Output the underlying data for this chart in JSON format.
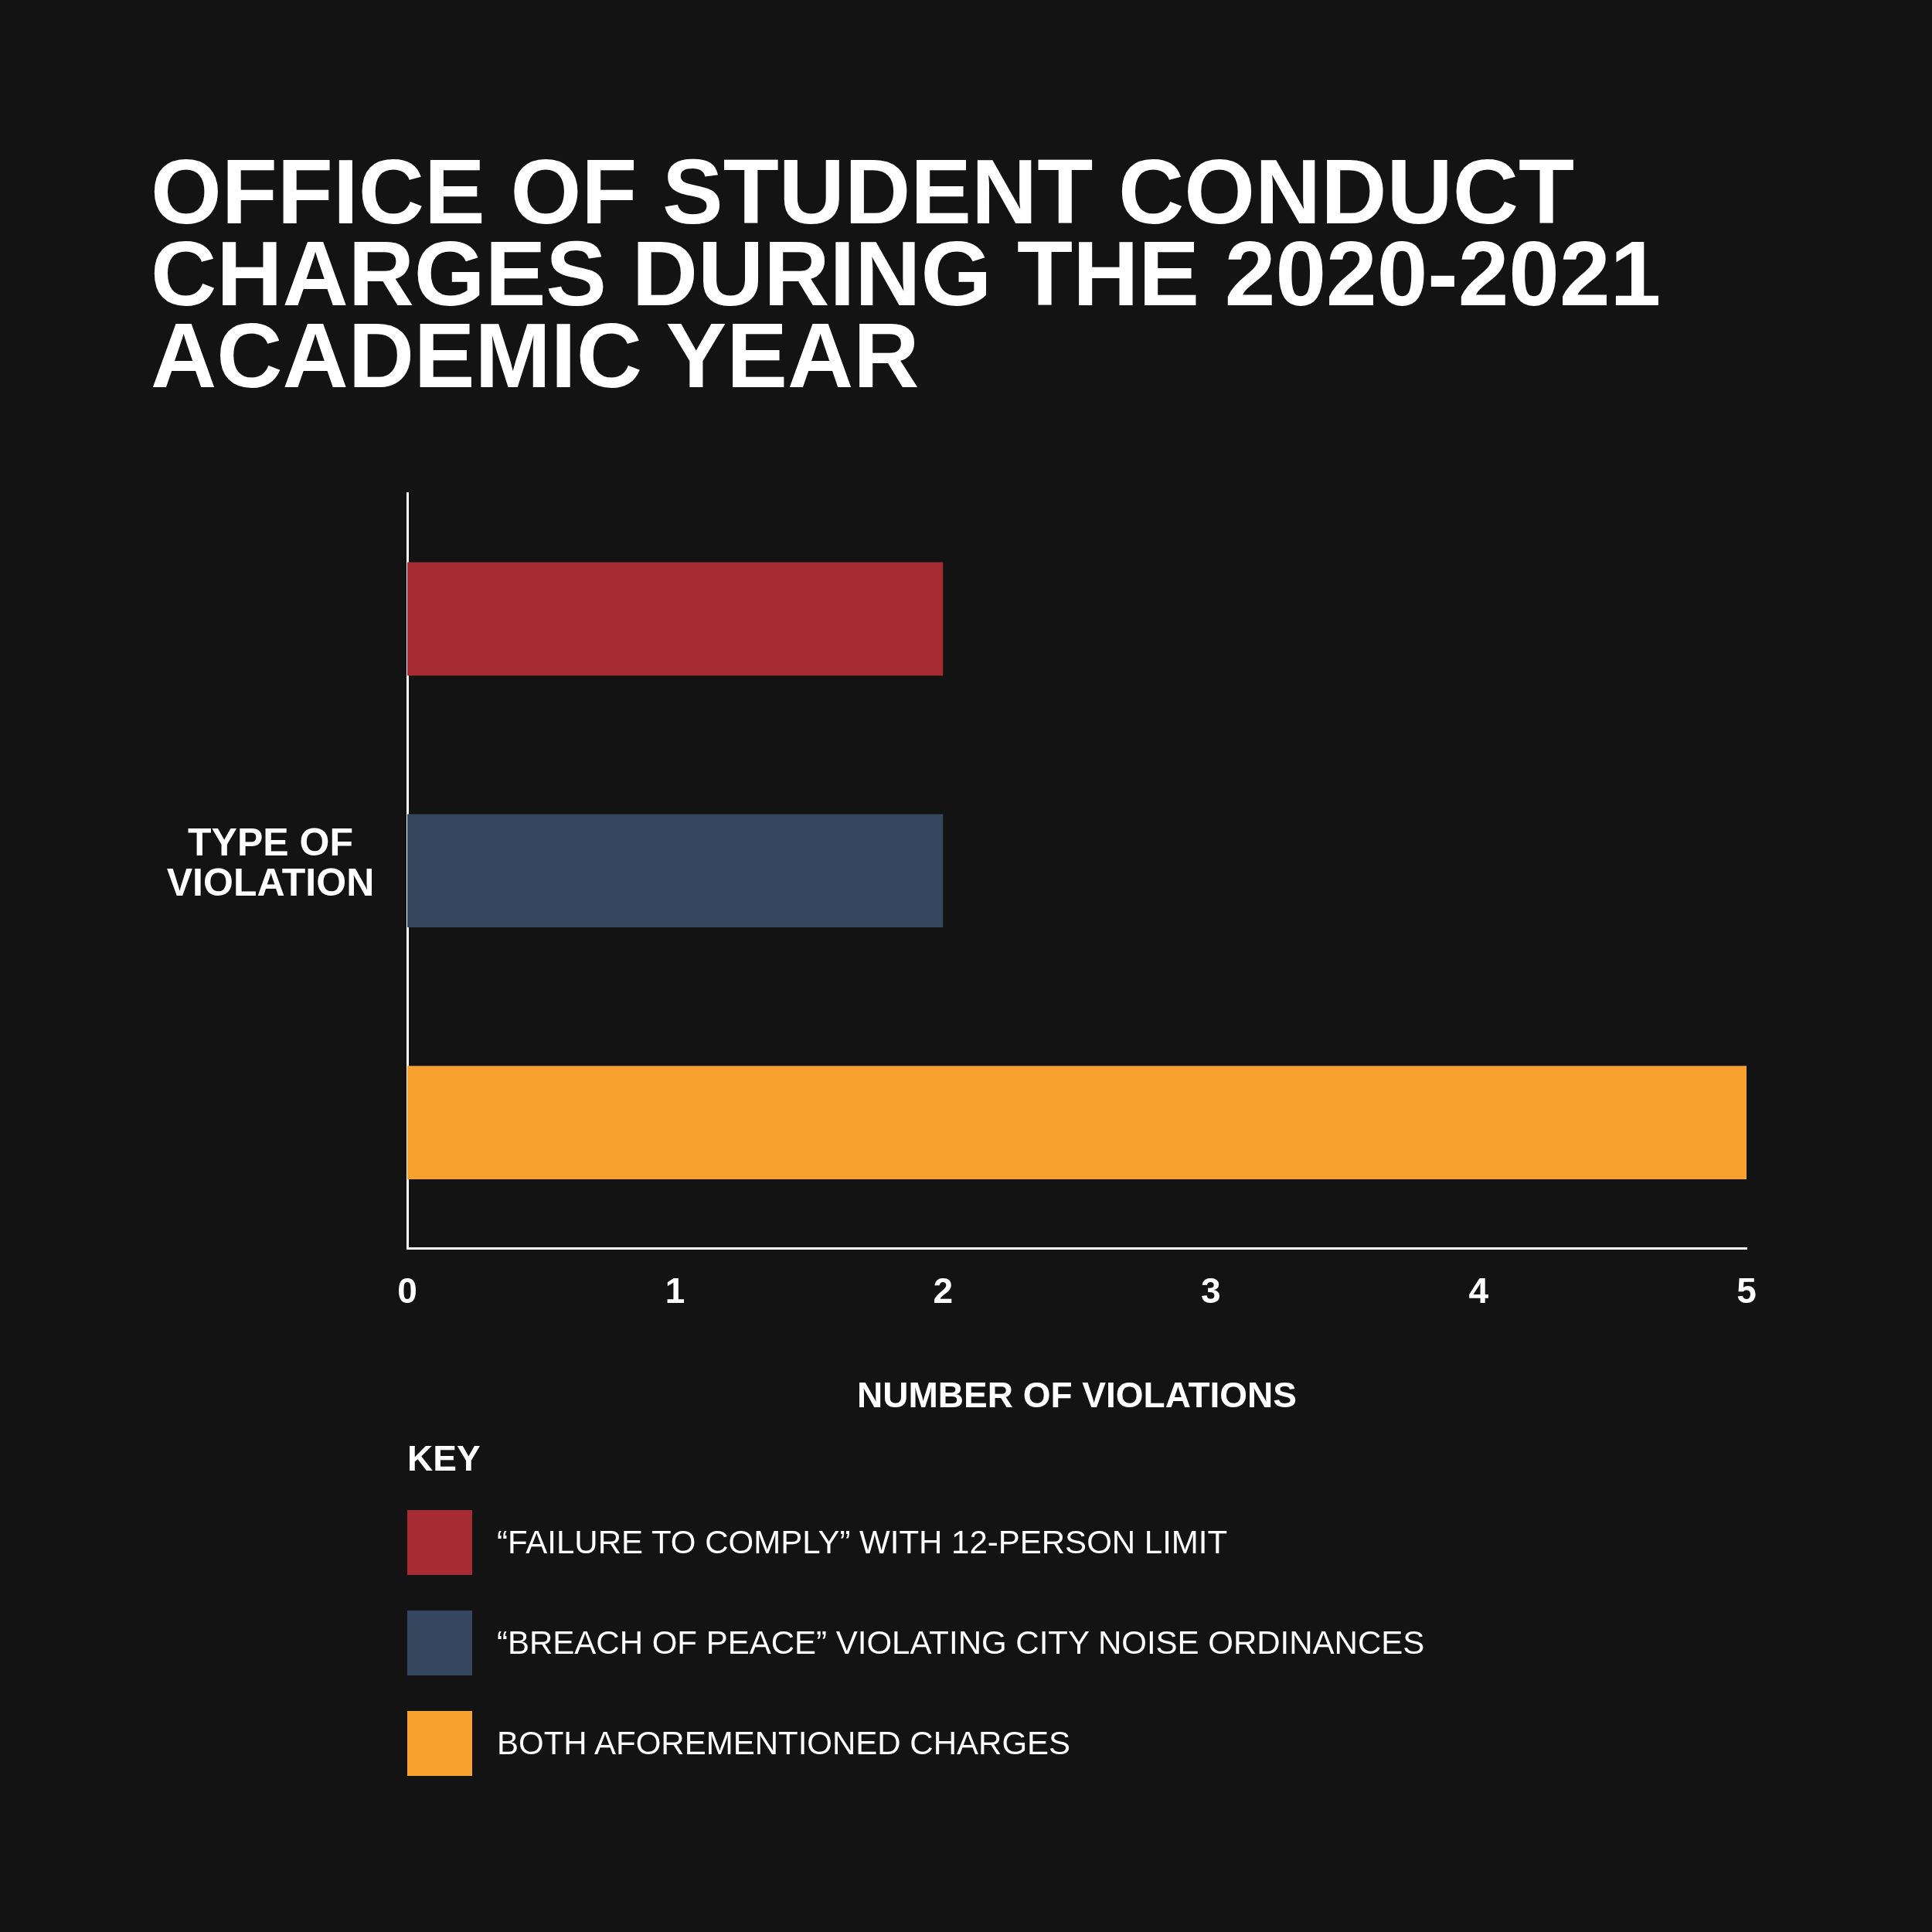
{
  "chart_data": {
    "type": "bar",
    "orientation": "horizontal",
    "title": "OFFICE OF STUDENT CONDUCT CHARGES DURING THE 2020-2021 ACADEMIC YEAR",
    "xlabel": "NUMBER OF VIOLATIONS",
    "ylabel": "TYPE OF VIOLATION",
    "categories": [
      null,
      null,
      null
    ],
    "series": [
      {
        "name": "“FAILURE TO COMPLY” WITH 12-PERSON LIMIT",
        "color": "#a62b33",
        "values": [
          2,
          null,
          null
        ]
      },
      {
        "name": "“BREACH OF PEACE” VIOLATING CITY NOISE ORDINANCES",
        "color": "#36465f",
        "values": [
          null,
          2,
          null
        ]
      },
      {
        "name": "BOTH AFOREMENTIONED CHARGES",
        "color": "#f9a12e",
        "values": [
          null,
          null,
          5
        ]
      }
    ],
    "xlim": [
      0,
      5
    ],
    "xticks": [
      0,
      1,
      2,
      3,
      4,
      5
    ],
    "grid": false,
    "legend": "bottom",
    "legend_title": "KEY"
  }
}
